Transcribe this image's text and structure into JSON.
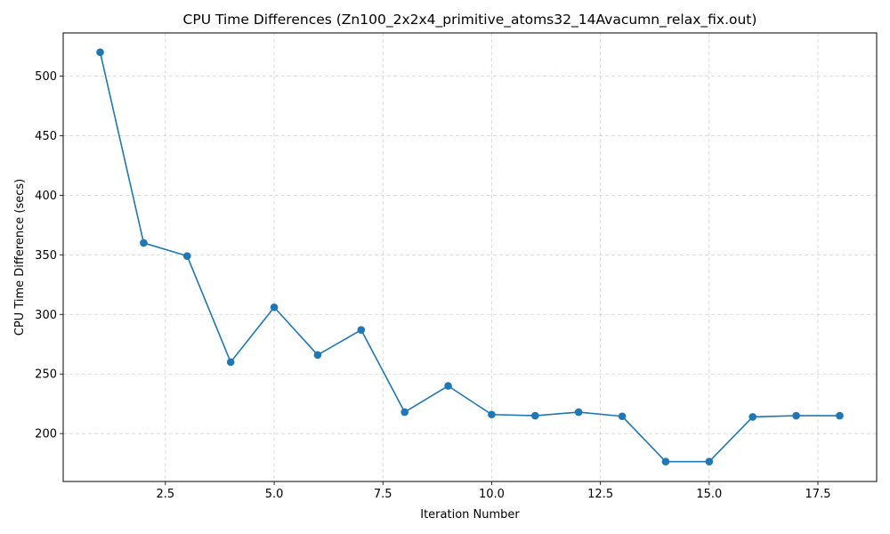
{
  "chart_data": {
    "type": "line",
    "title": "CPU Time Differences (Zn100_2x2x4_primitive_atoms32_14Avacumn_relax_fix.out)",
    "xlabel": "Iteration Number",
    "ylabel": "CPU Time Difference (secs)",
    "xlim": [
      0.15,
      18.85
    ],
    "ylim": [
      159.8,
      536.2
    ],
    "xticks": [
      2.5,
      5.0,
      7.5,
      10.0,
      12.5,
      15.0,
      17.5
    ],
    "xtick_labels": [
      "2.5",
      "5.0",
      "7.5",
      "10.0",
      "12.5",
      "15.0",
      "17.5"
    ],
    "yticks": [
      200,
      250,
      300,
      350,
      400,
      450,
      500
    ],
    "ytick_labels": [
      "200",
      "250",
      "300",
      "350",
      "400",
      "450",
      "500"
    ],
    "grid": true,
    "grid_style": "dashed",
    "marker": "circle",
    "color": "#1f77b4",
    "series": [
      {
        "x": [
          1,
          2,
          3,
          4,
          5,
          6,
          7,
          8,
          9,
          10,
          11,
          12,
          13,
          14,
          15,
          16,
          17,
          18
        ],
        "y": [
          520,
          360,
          349,
          260,
          306,
          266,
          287,
          218,
          240,
          216,
          215,
          218,
          214.5,
          176.5,
          176.5,
          214,
          215,
          215
        ]
      }
    ]
  }
}
